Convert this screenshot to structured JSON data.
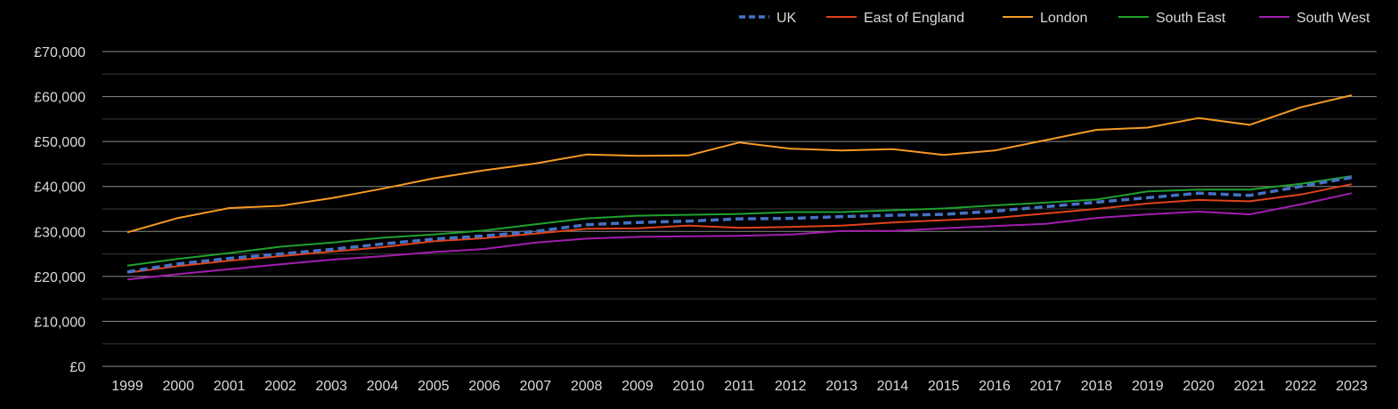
{
  "chart_data": {
    "type": "line",
    "title": "",
    "xlabel": "",
    "ylabel": "",
    "categories": [
      "1999",
      "2000",
      "2001",
      "2002",
      "2003",
      "2004",
      "2005",
      "2006",
      "2007",
      "2008",
      "2009",
      "2010",
      "2011",
      "2012",
      "2013",
      "2014",
      "2015",
      "2016",
      "2017",
      "2018",
      "2019",
      "2020",
      "2021",
      "2022",
      "2023"
    ],
    "ylim": [
      0,
      70000
    ],
    "y_ticks": [
      0,
      10000,
      20000,
      30000,
      40000,
      50000,
      60000,
      70000
    ],
    "y_tick_labels": [
      "£0",
      "£10,000",
      "£20,000",
      "£30,000",
      "£40,000",
      "£50,000",
      "£60,000",
      "£70,000"
    ],
    "grid": true,
    "legend_position": "top-right",
    "series": [
      {
        "name": "UK",
        "color": "#4472c4",
        "dashed": true,
        "values": [
          21000,
          22800,
          24000,
          25000,
          26000,
          27200,
          28300,
          29000,
          30000,
          31500,
          32000,
          32300,
          32800,
          32900,
          33300,
          33600,
          33800,
          34500,
          35500,
          36500,
          37500,
          38500,
          38000,
          40000,
          42000
        ]
      },
      {
        "name": "East of England",
        "color": "#e0421a",
        "dashed": false,
        "values": [
          20800,
          22300,
          23500,
          24500,
          25500,
          26500,
          27800,
          28500,
          29500,
          30600,
          30700,
          31300,
          30800,
          31000,
          31300,
          32000,
          32500,
          33000,
          34000,
          35000,
          36200,
          37000,
          36700,
          38200,
          40500
        ]
      },
      {
        "name": "London",
        "color": "#f59a23",
        "dashed": false,
        "values": [
          29800,
          33000,
          35200,
          35700,
          37400,
          39500,
          41800,
          43600,
          45100,
          47100,
          46800,
          46900,
          49800,
          48400,
          48000,
          48300,
          47000,
          48000,
          50300,
          52600,
          53100,
          55200,
          53700,
          57600,
          60300
        ]
      },
      {
        "name": "South East",
        "color": "#1fa12e",
        "dashed": false,
        "values": [
          22400,
          23900,
          25200,
          26600,
          27500,
          28600,
          29300,
          30200,
          31600,
          32900,
          33500,
          33700,
          33900,
          34300,
          34300,
          34700,
          35100,
          35800,
          36400,
          37100,
          38900,
          39300,
          39300,
          40600,
          42300
        ]
      },
      {
        "name": "South West",
        "color": "#a21caf",
        "dashed": false,
        "values": [
          19300,
          20500,
          21600,
          22700,
          23700,
          24500,
          25400,
          26100,
          27500,
          28400,
          28800,
          28900,
          29000,
          29300,
          30100,
          30100,
          30700,
          31200,
          31700,
          33000,
          33800,
          34400,
          33800,
          36000,
          38500
        ]
      }
    ]
  }
}
